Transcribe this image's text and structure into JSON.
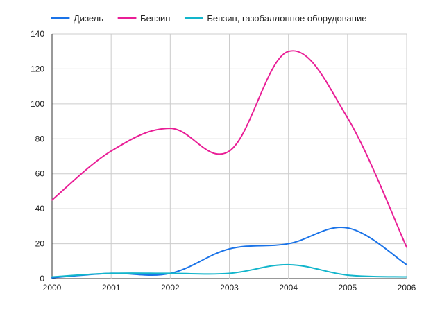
{
  "chart_data": {
    "type": "line",
    "title": "",
    "xlabel": "",
    "ylabel": "",
    "categories": [
      "2000",
      "2001",
      "2002",
      "2003",
      "2004",
      "2005",
      "2006"
    ],
    "x": [
      2000,
      2001,
      2002,
      2003,
      2004,
      2005,
      2006
    ],
    "ylim": [
      0,
      140
    ],
    "yticks": [
      0,
      20,
      40,
      60,
      80,
      100,
      120,
      140
    ],
    "grid": true,
    "legend_position": "top",
    "series": [
      {
        "name": "Дизель",
        "color": "#1a73e8",
        "values": [
          0.5,
          3,
          3,
          17,
          20,
          29,
          8
        ]
      },
      {
        "name": "Бензин",
        "color": "#e91e96",
        "values": [
          45,
          73,
          86,
          73,
          130,
          92,
          18
        ]
      },
      {
        "name": "Бензин, газобаллонное оборудование",
        "color": "#12b5cb",
        "values": [
          1,
          3,
          3,
          3,
          8,
          2,
          1
        ]
      }
    ]
  }
}
